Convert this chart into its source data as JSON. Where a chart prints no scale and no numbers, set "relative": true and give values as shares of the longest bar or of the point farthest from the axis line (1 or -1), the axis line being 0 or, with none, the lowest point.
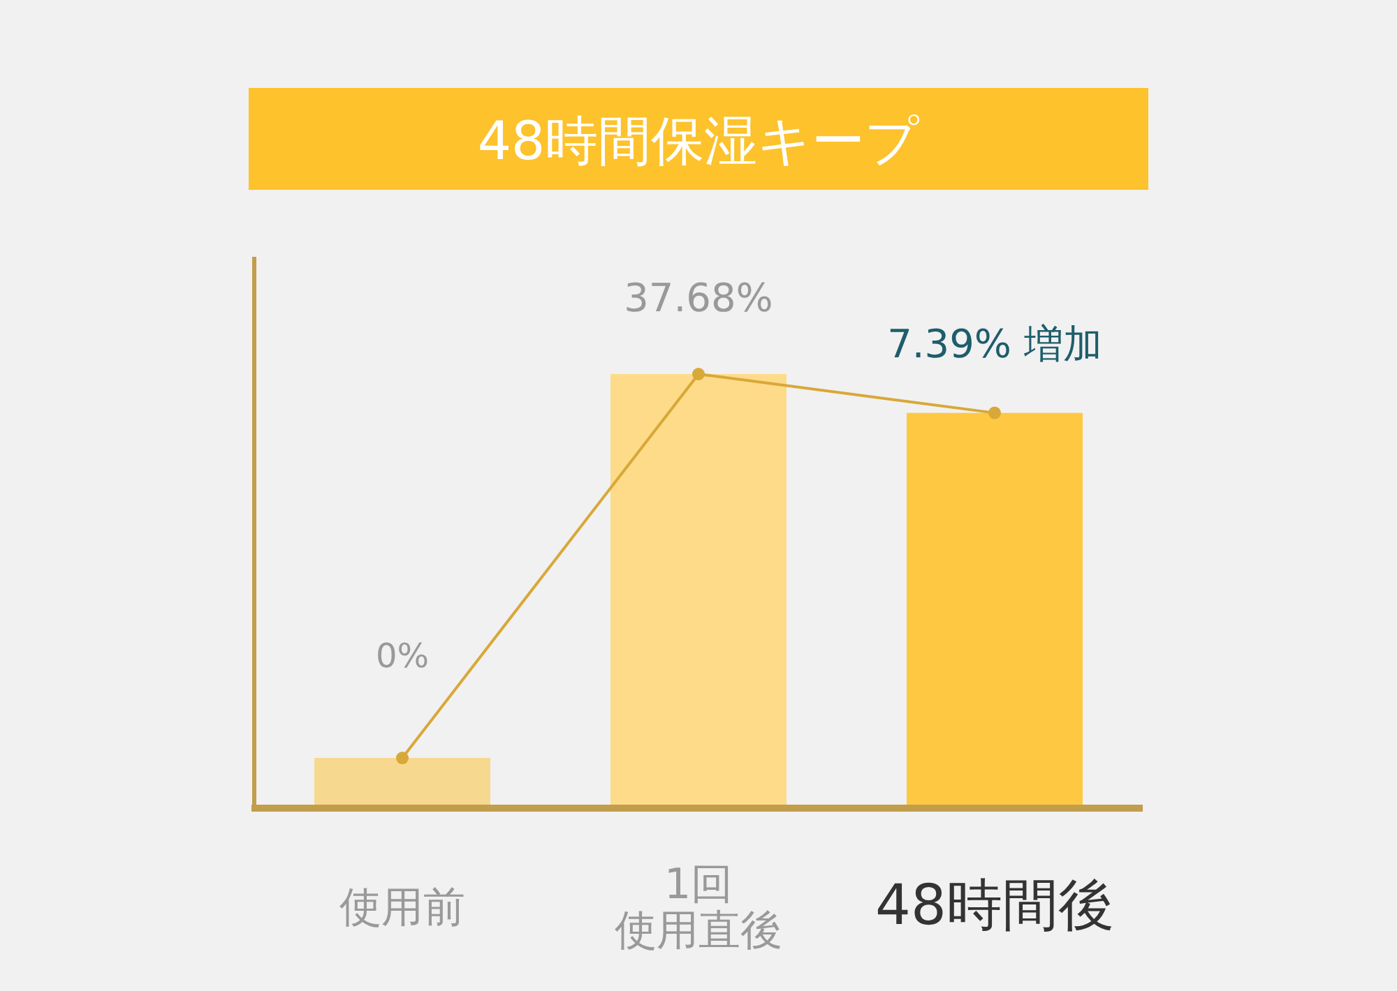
{
  "chart_data": {
    "type": "bar",
    "title": "48時間保湿キープ",
    "relative": true,
    "categories": [
      "使用前",
      "1回使用直後",
      "48時間後"
    ],
    "series": [
      {
        "type": "bar",
        "colors": [
          "#f7d88f",
          "#fddb89",
          "#fec843"
        ],
        "values": [
          0.11,
          1,
          0.91
        ]
      },
      {
        "type": "line",
        "color": "#d8a838",
        "marker": "circle",
        "values": [
          0.11,
          1,
          0.91
        ]
      }
    ],
    "annotations": [
      "0%",
      "37.68%",
      "7.39% 増加"
    ]
  }
}
